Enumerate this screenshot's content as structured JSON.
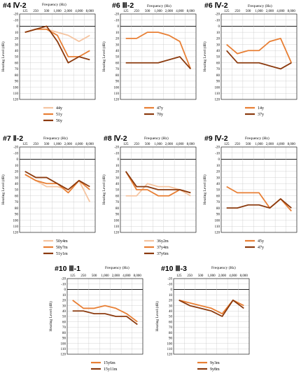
{
  "x_axis_label": "Frequency (Hz)",
  "y_axis_label": "Hearing Level (dB)",
  "chart_data": [
    {
      "type": "line",
      "title": "#4 Ⅳ-2",
      "xlabel": "Frequency (Hz)",
      "ylabel": "Hearing Level (dB)",
      "categories": [
        "125",
        "250",
        "500",
        "1,000",
        "2,000",
        "4,000",
        "8,000"
      ],
      "y_ticks": [
        "-20",
        "-10",
        "0",
        "10",
        "20",
        "30",
        "40",
        "50",
        "60",
        "70",
        "80",
        "90",
        "100",
        "110",
        "120"
      ],
      "ylim": [
        -20,
        120
      ],
      "grid": true,
      "legend_position": "bottom",
      "series": [
        {
          "name": "44y",
          "color": "#f5c4a0",
          "values": [
            10,
            5,
            5,
            10,
            15,
            25,
            15
          ]
        },
        {
          "name": "51y",
          "color": "#e87f34",
          "values": [
            10,
            5,
            5,
            15,
            50,
            50,
            40
          ]
        },
        {
          "name": "56y",
          "color": "#8b3a0e",
          "values": [
            10,
            5,
            0,
            25,
            60,
            50,
            55
          ]
        }
      ]
    },
    {
      "type": "line",
      "title": "#6 Ⅲ-2",
      "xlabel": "Frequency (Hz)",
      "ylabel": "Hearing Level (dB)",
      "categories": [
        "125",
        "250",
        "500",
        "1,000",
        "2,000",
        "4,000",
        "8,000"
      ],
      "y_ticks": [
        "-20",
        "-10",
        "0",
        "10",
        "20",
        "30",
        "40",
        "50",
        "60",
        "70",
        "80",
        "90",
        "100",
        "110",
        "120"
      ],
      "ylim": [
        -20,
        120
      ],
      "grid": true,
      "legend_position": "bottom",
      "series": [
        {
          "name": "47y",
          "color": "#e87f34",
          "values": [
            20,
            20,
            10,
            10,
            15,
            25,
            70
          ]
        },
        {
          "name": "70y",
          "color": "#8b3a0e",
          "values": [
            60,
            60,
            60,
            60,
            55,
            50,
            70
          ]
        }
      ]
    },
    {
      "type": "line",
      "title": "#6 Ⅳ-2",
      "xlabel": "Frequency (Hz)",
      "ylabel": "Hearing Level (dB)",
      "categories": [
        "125",
        "250",
        "500",
        "1,000",
        "2,000",
        "4,000",
        "8,000"
      ],
      "y_ticks": [
        "-20",
        "-10",
        "0",
        "10",
        "20",
        "30",
        "40",
        "50",
        "60",
        "70",
        "80",
        "90",
        "100",
        "110",
        "120"
      ],
      "ylim": [
        -20,
        120
      ],
      "grid": true,
      "legend_position": "bottom",
      "series": [
        {
          "name": "14y",
          "color": "#e87f34",
          "values": [
            30,
            45,
            40,
            40,
            25,
            20,
            60
          ]
        },
        {
          "name": "37y",
          "color": "#8b3a0e",
          "values": [
            40,
            60,
            60,
            60,
            65,
            70,
            60
          ]
        }
      ]
    },
    {
      "type": "line",
      "title": "#7 Ⅱ-2",
      "xlabel": "Frequency (Hz)",
      "ylabel": "Hearing Level (dB)",
      "categories": [
        "125",
        "250",
        "500",
        "1,000",
        "2,000",
        "4,000",
        "8,000"
      ],
      "y_ticks": [
        "-20",
        "-10",
        "0",
        "10",
        "20",
        "30",
        "40",
        "50",
        "60",
        "70",
        "80",
        "90",
        "100",
        "110",
        "120"
      ],
      "ylim": [
        -20,
        120
      ],
      "grid": true,
      "legend_position": "bottom",
      "series": [
        {
          "name": "50y4m",
          "color": "#f5c4a0",
          "values": [
            25,
            35,
            45,
            45,
            50,
            35,
            70
          ]
        },
        {
          "name": "50y7m",
          "color": "#e87f34",
          "values": [
            25,
            35,
            40,
            40,
            55,
            35,
            50
          ]
        },
        {
          "name": "51y1m",
          "color": "#8b3a0e",
          "values": [
            20,
            30,
            30,
            40,
            50,
            35,
            45
          ]
        }
      ]
    },
    {
      "type": "line",
      "title": "#8 Ⅳ-2",
      "xlabel": "Frequency (Hz)",
      "ylabel": "Hearing Level (dB)",
      "categories": [
        "125",
        "250",
        "500",
        "1,000",
        "2,000",
        "4,000",
        "8,000"
      ],
      "y_ticks": [
        "-20",
        "-10",
        "0",
        "10",
        "20",
        "30",
        "40",
        "50",
        "60",
        "70",
        "80",
        "90",
        "100",
        "110",
        "120"
      ],
      "ylim": [
        -20,
        120
      ],
      "grid": true,
      "legend_position": "bottom",
      "series": [
        {
          "name": "36y2m",
          "color": "#f5c4a0",
          "values": [
            60,
            60,
            40,
            45,
            45,
            50,
            60
          ]
        },
        {
          "name": "37y4m",
          "color": "#e87f34",
          "values": [
            20,
            50,
            50,
            60,
            60,
            50,
            55
          ]
        },
        {
          "name": "37y6m",
          "color": "#8b3a0e",
          "values": [
            20,
            45,
            45,
            50,
            50,
            50,
            55
          ]
        }
      ]
    },
    {
      "type": "line",
      "title": "#9 Ⅳ-2",
      "xlabel": "Frequency (Hz)",
      "ylabel": "Hearing Level (dB)",
      "categories": [
        "125",
        "250",
        "500",
        "1,000",
        "2,000",
        "4,000",
        "8,000"
      ],
      "y_ticks": [
        "-20",
        "-10",
        "0",
        "10",
        "20",
        "30",
        "40",
        "50",
        "60",
        "70",
        "80",
        "90",
        "100",
        "110",
        "120"
      ],
      "ylim": [
        -20,
        120
      ],
      "grid": true,
      "legend_position": "bottom",
      "series": [
        {
          "name": "45y",
          "color": "#e87f34",
          "values": [
            45,
            55,
            55,
            55,
            80,
            65,
            85
          ]
        },
        {
          "name": "47y",
          "color": "#8b3a0e",
          "values": [
            80,
            80,
            75,
            75,
            80,
            65,
            80
          ]
        }
      ]
    },
    {
      "type": "line",
      "title": "#10 Ⅲ-1",
      "xlabel": "Frequency (Hz)",
      "ylabel": "Hearing Level (dB)",
      "categories": [
        "125",
        "250",
        "500",
        "1,000",
        "2,000",
        "4,000",
        "8,000"
      ],
      "y_ticks": [
        "-20",
        "-10",
        "0",
        "10",
        "20",
        "30",
        "40",
        "50",
        "60",
        "70",
        "80",
        "90",
        "100",
        "110",
        "120"
      ],
      "ylim": [
        -20,
        120
      ],
      "grid": true,
      "legend_position": "bottom",
      "series": [
        {
          "name": "15y6m",
          "color": "#e87f34",
          "values": [
            20,
            35,
            35,
            30,
            35,
            45,
            60
          ]
        },
        {
          "name": "15y11m",
          "color": "#8b3a0e",
          "values": [
            40,
            40,
            45,
            45,
            50,
            50,
            65
          ]
        }
      ]
    },
    {
      "type": "line",
      "title": "#10 Ⅲ-3",
      "xlabel": "Frequency (Hz)",
      "ylabel": "Hearing Level (dB)",
      "categories": [
        "125",
        "250",
        "500",
        "1,000",
        "2,000",
        "4,000",
        "8,000"
      ],
      "y_ticks": [
        "-20",
        "-10",
        "0",
        "10",
        "20",
        "30",
        "40",
        "50",
        "60",
        "70",
        "80",
        "90",
        "100",
        "110",
        "120"
      ],
      "ylim": [
        -20,
        120
      ],
      "grid": true,
      "legend_position": "bottom",
      "series": [
        {
          "name": "9y3m",
          "color": "#e87f34",
          "values": [
            20,
            25,
            30,
            35,
            45,
            20,
            30
          ]
        },
        {
          "name": "9y8m",
          "color": "#8b3a0e",
          "values": [
            20,
            30,
            35,
            40,
            50,
            20,
            35
          ]
        }
      ]
    }
  ]
}
